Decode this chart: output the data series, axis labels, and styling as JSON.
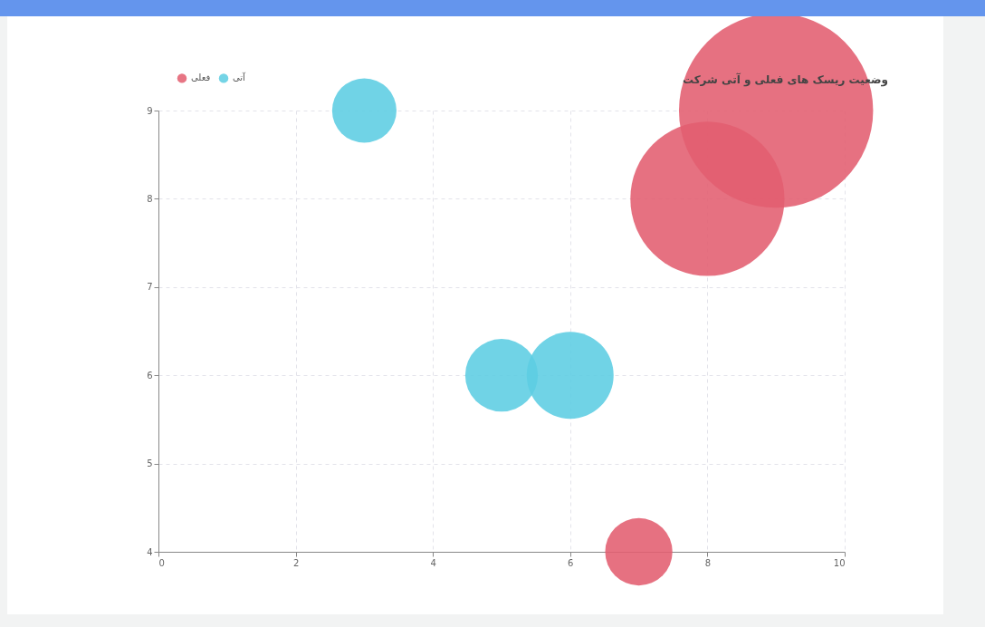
{
  "chart_data": {
    "type": "bubble",
    "title": "وضعیت ریسک های فعلی و آتی شرکت",
    "xlim": [
      0,
      10
    ],
    "xticks": [
      0,
      2,
      4,
      6,
      8,
      10
    ],
    "ylim": [
      4,
      9
    ],
    "yticks": [
      4,
      5,
      6,
      7,
      8,
      9
    ],
    "grid": true,
    "legend": "top left",
    "series": [
      {
        "name": "فعلی",
        "color": "#e35d6f",
        "x": [
          7,
          8,
          9
        ],
        "values": [
          4,
          8,
          9
        ],
        "sizes": [
          0.12,
          0.63,
          1
        ]
      },
      {
        "name": "آتی",
        "color": "#5ccde2",
        "x": [
          3,
          5,
          6
        ],
        "values": [
          9,
          6,
          6
        ],
        "sizes": [
          0.11,
          0.14,
          0.2
        ]
      }
    ]
  }
}
